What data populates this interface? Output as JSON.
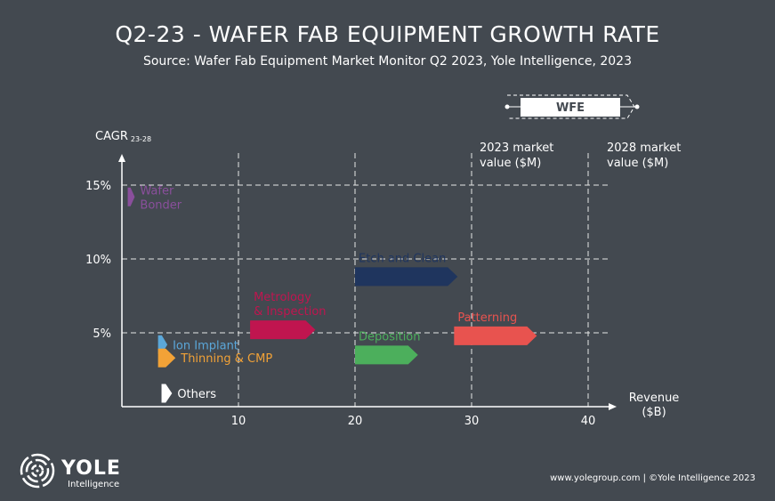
{
  "chart_data": {
    "type": "bar",
    "title": "Q2-23 - WAFER FAB EQUIPMENT GROWTH RATE",
    "subtitle": "Source: Wafer Fab Equipment Market Monitor Q2 2023, Yole Intelligence, 2023",
    "ylabel": "CAGR",
    "ylabel_sub": "23-28",
    "xlabel_line1": "Revenue",
    "xlabel_line2": "($B)",
    "xlim": [
      0,
      42
    ],
    "ylim": [
      0,
      17
    ],
    "x_ticks": [
      10,
      20,
      30,
      40
    ],
    "x_tick_labels": [
      "10",
      "20",
      "30",
      "40"
    ],
    "y_ticks": [
      5,
      10,
      15
    ],
    "y_tick_labels": [
      "5%",
      "10%",
      "15%"
    ],
    "grid": true,
    "series": [
      {
        "name": "Wafer Bonder",
        "label_lines": [
          "Wafer",
          "Bonder"
        ],
        "x_start": 0.5,
        "x_end": 1.1,
        "cagr": 14.2,
        "color": "#8a4f9c",
        "label_color": "#8a4f9c",
        "label_pos": "right"
      },
      {
        "name": "Etch and Clean",
        "label_lines": [
          "Etch and Clean"
        ],
        "x_start": 20.0,
        "x_end": 28.8,
        "cagr": 8.8,
        "color": "#1f355e",
        "label_color": "#1f355e",
        "label_pos": "above"
      },
      {
        "name": "Metrology & Inspection",
        "label_lines": [
          "Metrology",
          "& Inspection"
        ],
        "x_start": 11.0,
        "x_end": 16.6,
        "cagr": 5.2,
        "color": "#c0154f",
        "label_color": "#c0154f",
        "label_pos": "above"
      },
      {
        "name": "Deposition",
        "label_lines": [
          "Deposition"
        ],
        "x_start": 20.0,
        "x_end": 25.4,
        "cagr": 3.5,
        "color": "#4caf5c",
        "label_color": "#4caf5c",
        "label_pos": "above"
      },
      {
        "name": "Patterning",
        "label_lines": [
          "Patterning"
        ],
        "x_start": 28.5,
        "x_end": 35.6,
        "cagr": 4.8,
        "color": "#e8534f",
        "label_color": "#e8534f",
        "label_pos": "above"
      },
      {
        "name": "Ion Implant",
        "label_lines": [
          "Ion Implant"
        ],
        "x_start": 3.1,
        "x_end": 3.9,
        "cagr": 4.2,
        "color": "#5ba7d9",
        "label_color": "#5ba7d9",
        "label_pos": "right"
      },
      {
        "name": "Thinning & CMP",
        "label_lines": [
          "Thinning & CMP"
        ],
        "x_start": 3.1,
        "x_end": 4.6,
        "cagr": 3.3,
        "color": "#f2a237",
        "label_color": "#f2a237",
        "label_pos": "right"
      },
      {
        "name": "Others",
        "label_lines": [
          "Others"
        ],
        "x_start": 3.4,
        "x_end": 4.3,
        "cagr": 0.9,
        "color": "#ffffff",
        "label_color": "#ffffff",
        "label_pos": "right"
      }
    ],
    "wfe_legend": {
      "label": "WFE",
      "start_label_lines": [
        "2023 market",
        "value ($M)"
      ],
      "end_label_lines": [
        "2028 market",
        "value ($M)"
      ]
    }
  },
  "logo": {
    "name": "YOLE",
    "sub": "Intelligence"
  },
  "footer": "www.yolegroup.com | ©Yole Intelligence 2023"
}
